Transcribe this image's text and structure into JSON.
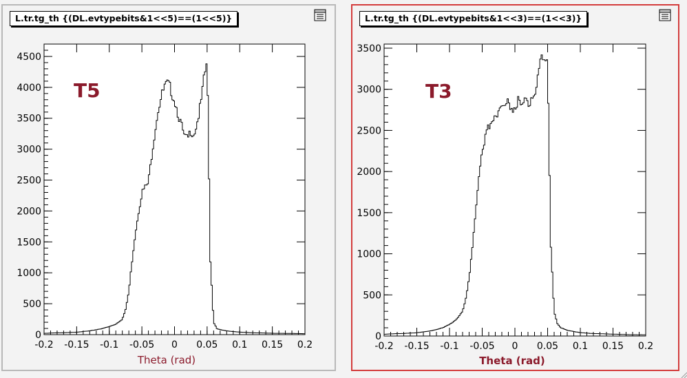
{
  "colors": {
    "background": "#f3f3f3",
    "frame": "#ffffff",
    "label_color": "#8b1a2b",
    "active_pad_border": "#d33b3b",
    "inactive_pad_border": "#b8b8b8"
  },
  "chart_data": [
    {
      "type": "bar",
      "title": "L.tr.tg_th {(DL.evtypebits&1<<5)==(1<<5)}",
      "annotation": "T5",
      "xlabel": "Theta (rad)",
      "ylabel": "",
      "xlim": [
        -0.2,
        0.2
      ],
      "ylim": [
        0,
        4700
      ],
      "grid": false,
      "x_ticks": [
        "-0.2",
        "-0.15",
        "-0.1",
        "-0.05",
        "0",
        "0.05",
        "0.1",
        "0.15",
        "0.2"
      ],
      "y_ticks": [
        "0",
        "500",
        "1000",
        "1500",
        "2000",
        "2500",
        "3000",
        "3500",
        "4000",
        "4500"
      ],
      "bin_centers": [
        -0.2,
        -0.19,
        -0.18,
        -0.17,
        -0.16,
        -0.15,
        -0.14,
        -0.13,
        -0.12,
        -0.11,
        -0.1,
        -0.09,
        -0.08,
        -0.075,
        -0.07,
        -0.065,
        -0.06,
        -0.055,
        -0.05,
        -0.045,
        -0.04,
        -0.035,
        -0.03,
        -0.025,
        -0.02,
        -0.015,
        -0.01,
        -0.005,
        0,
        0.005,
        0.01,
        0.015,
        0.02,
        0.025,
        0.03,
        0.035,
        0.04,
        0.045,
        0.05,
        0.055,
        0.06,
        0.065,
        0.07,
        0.08,
        0.1,
        0.12,
        0.14,
        0.16,
        0.18,
        0.2
      ],
      "values": [
        20,
        25,
        30,
        30,
        35,
        40,
        50,
        60,
        80,
        100,
        130,
        170,
        250,
        400,
        700,
        1200,
        1650,
        2000,
        2300,
        2380,
        2450,
        2900,
        3300,
        3650,
        3850,
        4000,
        4050,
        3950,
        3800,
        3600,
        3400,
        3200,
        3150,
        3300,
        3250,
        3450,
        3700,
        4100,
        4450,
        1200,
        200,
        100,
        80,
        60,
        40,
        30,
        25,
        20,
        20,
        15
      ]
    },
    {
      "type": "bar",
      "title": "L.tr.tg_th {(DL.evtypebits&1<<3)==(1<<3)}",
      "annotation": "T3",
      "xlabel": "Theta (rad)",
      "ylabel": "",
      "xlim": [
        -0.2,
        0.2
      ],
      "ylim": [
        0,
        3550
      ],
      "grid": false,
      "x_ticks": [
        "-0.2",
        "-0.15",
        "-0.1",
        "-0.05",
        "0",
        "0.05",
        "0.1",
        "0.15",
        "0.2"
      ],
      "y_ticks": [
        "0",
        "500",
        "1000",
        "1500",
        "2000",
        "2500",
        "3000",
        "3500"
      ],
      "bin_centers": [
        -0.2,
        -0.19,
        -0.18,
        -0.17,
        -0.16,
        -0.15,
        -0.14,
        -0.13,
        -0.12,
        -0.11,
        -0.1,
        -0.09,
        -0.08,
        -0.075,
        -0.07,
        -0.065,
        -0.06,
        -0.055,
        -0.05,
        -0.045,
        -0.04,
        -0.035,
        -0.03,
        -0.025,
        -0.02,
        -0.015,
        -0.01,
        -0.005,
        0,
        0.005,
        0.01,
        0.015,
        0.02,
        0.025,
        0.03,
        0.035,
        0.04,
        0.045,
        0.05,
        0.055,
        0.06,
        0.065,
        0.07,
        0.08,
        0.1,
        0.12,
        0.14,
        0.16,
        0.18,
        0.2
      ],
      "values": [
        20,
        25,
        30,
        30,
        35,
        40,
        50,
        60,
        80,
        100,
        140,
        200,
        300,
        450,
        700,
        1100,
        1550,
        1950,
        2200,
        2400,
        2550,
        2650,
        2700,
        2750,
        2780,
        2800,
        2850,
        2780,
        2800,
        2850,
        2800,
        2850,
        2800,
        2900,
        2950,
        3100,
        3350,
        3300,
        3300,
        1100,
        300,
        150,
        100,
        70,
        40,
        30,
        25,
        20,
        15,
        15
      ]
    }
  ]
}
